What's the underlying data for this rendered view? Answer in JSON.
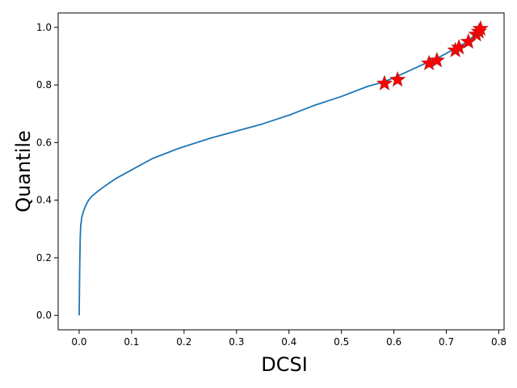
{
  "chart_data": {
    "type": "line",
    "title": "",
    "xlabel": "DCSI",
    "ylabel": "Quantile",
    "xlim": [
      -0.04,
      0.81
    ],
    "ylim": [
      -0.05,
      1.05
    ],
    "xticks": [
      0.0,
      0.1,
      0.2,
      0.3,
      0.4,
      0.5,
      0.6,
      0.7,
      0.8
    ],
    "xtick_labels": [
      "0.0",
      "0.1",
      "0.2",
      "0.3",
      "0.4",
      "0.5",
      "0.6",
      "0.7",
      "0.8"
    ],
    "yticks": [
      0.0,
      0.2,
      0.4,
      0.6,
      0.8,
      1.0
    ],
    "ytick_labels": [
      "0.0",
      "0.2",
      "0.4",
      "0.6",
      "0.8",
      "1.0"
    ],
    "grid": false,
    "series": [
      {
        "type": "line",
        "color": "#1f77b4",
        "x": [
          0.0,
          0.001,
          0.002,
          0.003,
          0.005,
          0.008,
          0.012,
          0.018,
          0.025,
          0.035,
          0.05,
          0.07,
          0.1,
          0.14,
          0.19,
          0.25,
          0.3,
          0.35,
          0.4,
          0.45,
          0.5,
          0.55,
          0.58,
          0.6,
          0.63,
          0.66,
          0.68,
          0.7,
          0.72,
          0.74,
          0.755,
          0.765
        ],
        "y": [
          0.0,
          0.15,
          0.27,
          0.31,
          0.34,
          0.36,
          0.38,
          0.4,
          0.415,
          0.43,
          0.45,
          0.475,
          0.505,
          0.545,
          0.58,
          0.615,
          0.64,
          0.665,
          0.695,
          0.73,
          0.76,
          0.795,
          0.81,
          0.825,
          0.85,
          0.875,
          0.89,
          0.91,
          0.93,
          0.95,
          0.975,
          1.0
        ]
      },
      {
        "type": "scatter",
        "marker": "star",
        "color": "#ff0000",
        "x": [
          0.582,
          0.607,
          0.667,
          0.682,
          0.717,
          0.724,
          0.742,
          0.757,
          0.762,
          0.765
        ],
        "y": [
          0.805,
          0.818,
          0.875,
          0.885,
          0.92,
          0.93,
          0.95,
          0.975,
          0.985,
          0.995
        ]
      }
    ]
  }
}
